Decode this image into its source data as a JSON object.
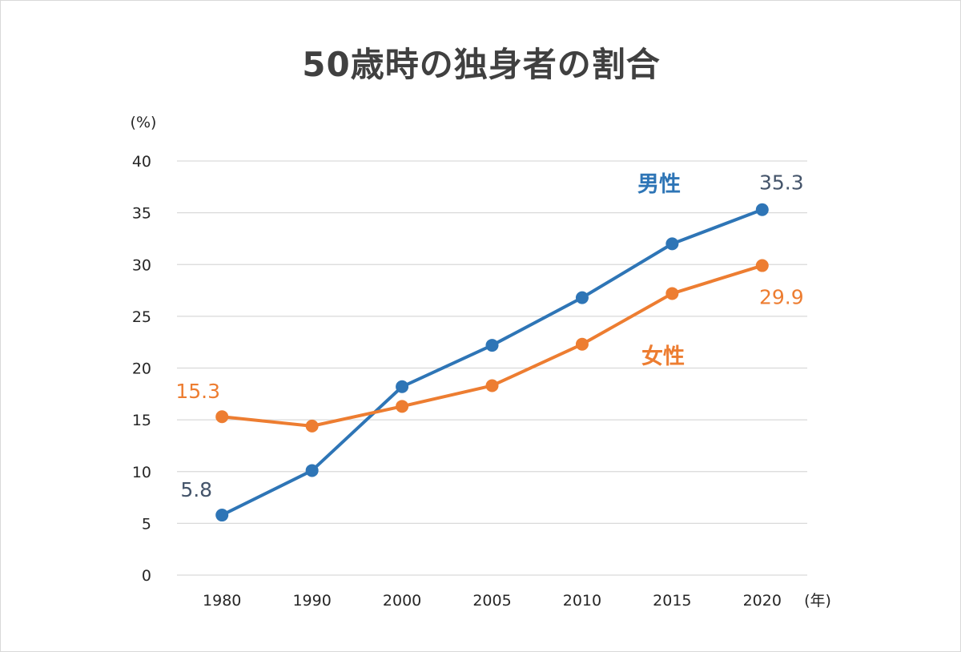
{
  "chart_data": {
    "type": "line",
    "title": "50歳時の独身者の割合",
    "y_unit": "(%)",
    "x_unit": "(年)",
    "categories": [
      "1980",
      "1990",
      "2000",
      "2005",
      "2010",
      "2015",
      "2020"
    ],
    "ylim": [
      0,
      40
    ],
    "yticks": [
      "0",
      "5",
      "10",
      "15",
      "20",
      "25",
      "30",
      "35",
      "40"
    ],
    "grid": true,
    "series": [
      {
        "name": "男性",
        "color": "#2e75b6",
        "label_color": "#44546a",
        "values": [
          5.8,
          10.1,
          18.2,
          22.2,
          26.8,
          32.0,
          35.3
        ],
        "data_labels": [
          {
            "index": 0,
            "text": "5.8"
          },
          {
            "index": 6,
            "text": "35.3"
          }
        ]
      },
      {
        "name": "女性",
        "color": "#ed7d31",
        "label_color": "#ed7d31",
        "values": [
          15.3,
          14.4,
          16.3,
          18.3,
          22.3,
          27.2,
          29.9
        ],
        "data_labels": [
          {
            "index": 0,
            "text": "15.3"
          },
          {
            "index": 6,
            "text": "29.9"
          }
        ]
      }
    ]
  }
}
